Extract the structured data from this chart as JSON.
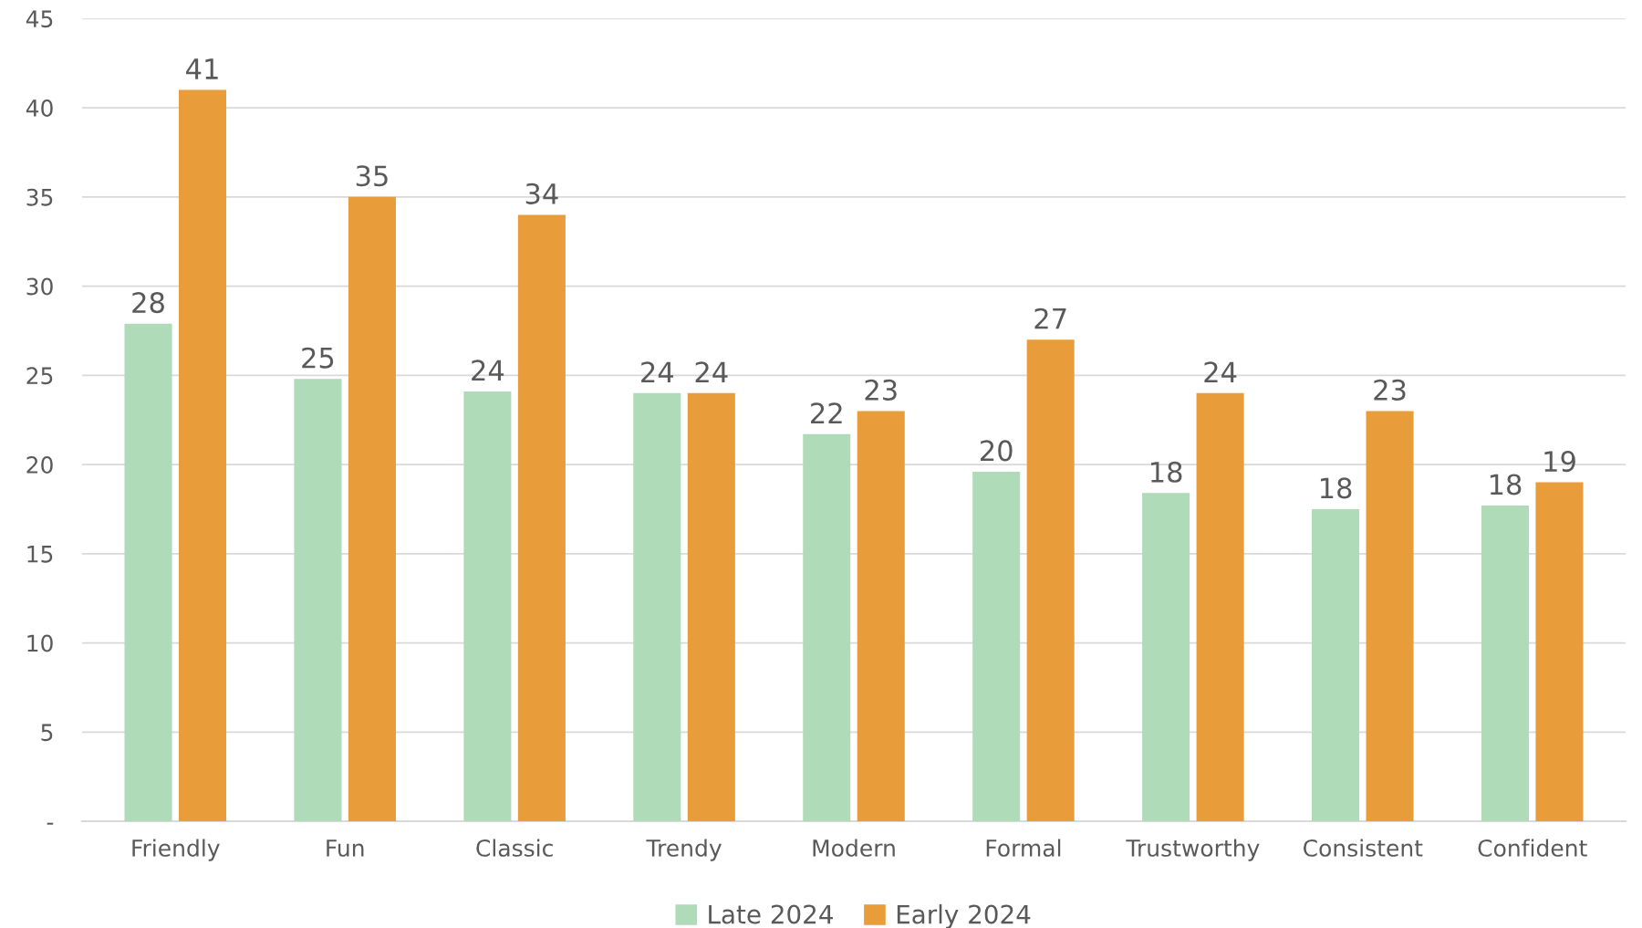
{
  "chart_data": {
    "type": "bar",
    "categories": [
      "Friendly",
      "Fun",
      "Classic",
      "Trendy",
      "Modern",
      "Formal",
      "Trustworthy",
      "Consistent",
      "Confident"
    ],
    "series": [
      {
        "name": "Late 2024",
        "color": "#b0dbb9",
        "values": [
          27.9,
          24.8,
          24.1,
          24.0,
          21.7,
          19.6,
          18.4,
          17.5,
          17.7
        ],
        "value_labels": [
          "28",
          "25",
          "24",
          "24",
          "22",
          "20",
          "18",
          "18",
          "18"
        ]
      },
      {
        "name": "Early 2024",
        "color": "#e99c3a",
        "values": [
          41,
          35,
          34,
          24,
          23,
          27,
          24,
          23,
          19
        ],
        "value_labels": [
          "41",
          "35",
          "34",
          "24",
          "23",
          "27",
          "24",
          "23",
          "19"
        ]
      }
    ],
    "ylim": [
      0,
      45
    ],
    "yticks": [
      {
        "value": 0,
        "label": "-"
      },
      5,
      10,
      15,
      20,
      25,
      30,
      35,
      40,
      45
    ],
    "grid": "y",
    "legend": "bottom"
  }
}
